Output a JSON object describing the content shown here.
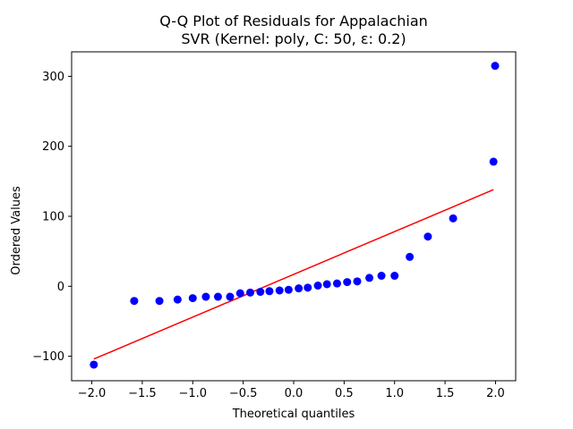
{
  "chart_data": {
    "type": "scatter",
    "title_line1": "Q-Q Plot of Residuals for Appalachian",
    "title_line2": "SVR (Kernel: poly, C: 50, ε: 0.2)",
    "xlabel": "Theoretical quantiles",
    "ylabel": "Ordered Values",
    "xlim": [
      -2.2,
      2.2
    ],
    "ylim": [
      -135,
      335
    ],
    "xticks": [
      -2.0,
      -1.5,
      -1.0,
      -0.5,
      0.0,
      0.5,
      1.0,
      1.5,
      2.0
    ],
    "xtick_labels": [
      "−2.0",
      "−1.5",
      "−1.0",
      "−0.5",
      "0.0",
      "0.5",
      "1.0",
      "1.5",
      "2.0"
    ],
    "yticks": [
      -100,
      0,
      100,
      200,
      300
    ],
    "ytick_labels": [
      "−100",
      "0",
      "100",
      "200",
      "300"
    ],
    "grid": false,
    "point_color": "#0000ff",
    "line_color": "#ff0000",
    "points": [
      {
        "x": -1.98,
        "y": -112
      },
      {
        "x": -1.58,
        "y": -21
      },
      {
        "x": -1.33,
        "y": -21
      },
      {
        "x": -1.15,
        "y": -19
      },
      {
        "x": -1.0,
        "y": -17
      },
      {
        "x": -0.87,
        "y": -15
      },
      {
        "x": -0.75,
        "y": -15
      },
      {
        "x": -0.63,
        "y": -15
      },
      {
        "x": -0.53,
        "y": -10
      },
      {
        "x": -0.43,
        "y": -9
      },
      {
        "x": -0.33,
        "y": -8
      },
      {
        "x": -0.24,
        "y": -7
      },
      {
        "x": -0.14,
        "y": -6
      },
      {
        "x": -0.05,
        "y": -5
      },
      {
        "x": 0.05,
        "y": -3
      },
      {
        "x": 0.14,
        "y": -2
      },
      {
        "x": 0.24,
        "y": 1
      },
      {
        "x": 0.33,
        "y": 3
      },
      {
        "x": 0.43,
        "y": 4
      },
      {
        "x": 0.53,
        "y": 6
      },
      {
        "x": 0.63,
        "y": 7
      },
      {
        "x": 0.75,
        "y": 12
      },
      {
        "x": 0.87,
        "y": 15
      },
      {
        "x": 1.0,
        "y": 15
      },
      {
        "x": 1.15,
        "y": 42
      },
      {
        "x": 1.33,
        "y": 71
      },
      {
        "x": 1.58,
        "y": 97
      },
      {
        "x": 1.98,
        "y": 178
      },
      {
        "x": 2.2,
        "y": 315
      }
    ],
    "fit_line": {
      "x": [
        -1.98,
        1.98
      ],
      "y": [
        -104,
        138
      ]
    }
  }
}
